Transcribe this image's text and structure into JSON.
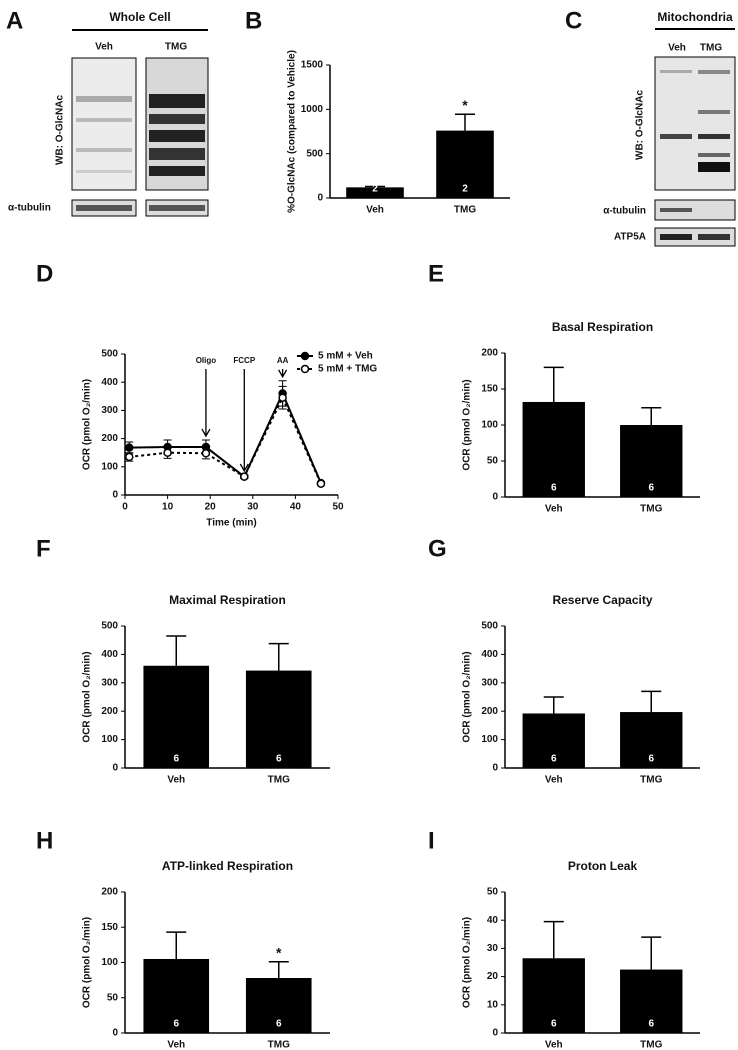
{
  "blots": [
    {
      "label": "A",
      "title": "Whole Cell",
      "lanes": [
        "Veh",
        "TMG"
      ],
      "rows": [
        "WB: O-GlcNAc",
        "α-tubulin"
      ]
    },
    {
      "label": "C",
      "title": "Mitochondria",
      "lanes": [
        "Veh",
        "TMG"
      ],
      "rows": [
        "WB: O-GlcNAc",
        "α-tubulin",
        "ATP5A"
      ]
    }
  ],
  "chart_data": [
    {
      "type": "bar",
      "label": "B",
      "ylabel": "%O-GlcNAc (compared to Vehicle)",
      "categories": [
        "Veh",
        "TMG"
      ],
      "values": [
        120,
        760
      ],
      "errors": [
        10,
        185
      ],
      "n": [
        2,
        2
      ],
      "significance": [
        null,
        "*"
      ],
      "color": "#000000",
      "ylim": [
        0,
        1500
      ],
      "yticks": [
        0,
        500,
        1000,
        1500
      ]
    },
    {
      "type": "line",
      "label": "D",
      "xlabel": "Time (min)",
      "ylabel": "OCR (pmol O₂/min)",
      "x": [
        1,
        10,
        19,
        28,
        37,
        46
      ],
      "series": [
        {
          "name": "5 mM + Veh",
          "color": "#000000",
          "linestyle": "solid",
          "marker_fill": "#000000",
          "values": [
            168,
            170,
            170,
            65,
            360,
            42
          ],
          "errors": [
            20,
            25,
            25,
            6,
            45,
            5
          ]
        },
        {
          "name": "5 mM + TMG",
          "color": "#000000",
          "linestyle": "dotted",
          "marker_fill": "#ffffff",
          "values": [
            135,
            150,
            148,
            65,
            345,
            40
          ],
          "errors": [
            15,
            20,
            20,
            6,
            40,
            5
          ]
        }
      ],
      "annotations": [
        {
          "text": "Oligo",
          "x": 19
        },
        {
          "text": "FCCP",
          "x": 28
        },
        {
          "text": "AA",
          "x": 37
        }
      ],
      "xlim": [
        0,
        50
      ],
      "xticks": [
        0,
        10,
        20,
        30,
        40,
        50
      ],
      "ylim": [
        0,
        500
      ],
      "yticks": [
        0,
        100,
        200,
        300,
        400,
        500
      ],
      "legend": "upper right"
    },
    {
      "type": "bar",
      "label": "E",
      "title": "Basal Respiration",
      "ylabel": "OCR (pmol O₂/min)",
      "categories": [
        "Veh",
        "TMG"
      ],
      "values": [
        132,
        100
      ],
      "errors": [
        48,
        24
      ],
      "n": [
        6,
        6
      ],
      "significance": [
        null,
        null
      ],
      "color": "#000000",
      "ylim": [
        0,
        200
      ],
      "yticks": [
        0,
        50,
        100,
        150,
        200
      ]
    },
    {
      "type": "bar",
      "label": "F",
      "title": "Maximal  Respiration",
      "ylabel": "OCR (pmol O₂/min)",
      "categories": [
        "Veh",
        "TMG"
      ],
      "values": [
        360,
        343
      ],
      "errors": [
        105,
        95
      ],
      "n": [
        6,
        6
      ],
      "significance": [
        null,
        null
      ],
      "color": "#000000",
      "ylim": [
        0,
        500
      ],
      "yticks": [
        0,
        100,
        200,
        300,
        400,
        500
      ]
    },
    {
      "type": "bar",
      "label": "G",
      "title": "Reserve Capacity",
      "ylabel": "OCR (pmol O₂/min)",
      "categories": [
        "Veh",
        "TMG"
      ],
      "values": [
        192,
        197
      ],
      "errors": [
        58,
        73
      ],
      "n": [
        6,
        6
      ],
      "significance": [
        null,
        null
      ],
      "color": "#000000",
      "ylim": [
        0,
        500
      ],
      "yticks": [
        0,
        100,
        200,
        300,
        400,
        500
      ]
    },
    {
      "type": "bar",
      "label": "H",
      "title": "ATP-linked Respiration",
      "ylabel": "OCR (pmol O₂/min)",
      "categories": [
        "Veh",
        "TMG"
      ],
      "values": [
        105,
        78
      ],
      "errors": [
        38,
        23
      ],
      "n": [
        6,
        6
      ],
      "significance": [
        null,
        "*"
      ],
      "color": "#000000",
      "ylim": [
        0,
        200
      ],
      "yticks": [
        0,
        50,
        100,
        150,
        200
      ]
    },
    {
      "type": "bar",
      "label": "I",
      "title": "Proton Leak",
      "ylabel": "OCR (pmol O₂/min)",
      "categories": [
        "Veh",
        "TMG"
      ],
      "values": [
        26.5,
        22.5
      ],
      "errors": [
        13,
        11.5
      ],
      "n": [
        6,
        6
      ],
      "significance": [
        null,
        null
      ],
      "color": "#000000",
      "ylim": [
        0,
        50
      ],
      "yticks": [
        0,
        10,
        20,
        30,
        40,
        50
      ]
    }
  ]
}
